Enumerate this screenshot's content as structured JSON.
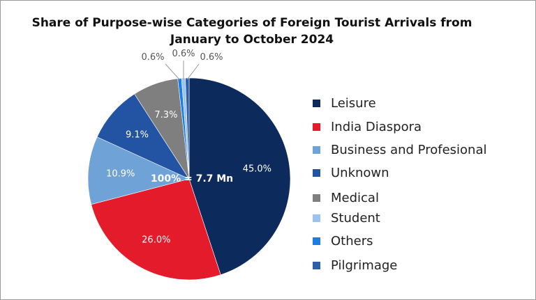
{
  "chart_data": {
    "type": "pie",
    "title": "Share of Purpose-wise Categories of Foreign Tourist Arrivals from January to October 2024",
    "title_lines": [
      "Share of Purpose-wise Categories of Foreign Tourist Arrivals from",
      "January to October 2024"
    ],
    "center_label": "100% = 7.7 Mn",
    "legend_position": "right",
    "slices": [
      {
        "name": "Leisure",
        "value": 45.0,
        "label": "45.0%",
        "color": "#0d2a5c"
      },
      {
        "name": "India Diaspora",
        "value": 26.0,
        "label": "26.0%",
        "color": "#e41b2b"
      },
      {
        "name": "Business  and Profesional",
        "value": 10.9,
        "label": "10.9%",
        "color": "#6fa3d8"
      },
      {
        "name": "Unknown",
        "value": 9.1,
        "label": "9.1%",
        "color": "#2353a3"
      },
      {
        "name": "Medical",
        "value": 7.3,
        "label": "7.3%",
        "color": "#7f7f7f"
      },
      {
        "name": "Others",
        "value": 0.6,
        "label": "0.6%",
        "color": "#1a7ee6"
      },
      {
        "name": "Student",
        "value": 0.6,
        "label": "0.6%",
        "color": "#9cc3ef"
      },
      {
        "name": "Pilgrimage",
        "value": 0.6,
        "label": "0.6%",
        "color": "#2e5ea8"
      }
    ],
    "legend_order": [
      "Leisure",
      "India Diaspora",
      "Business  and Profesional",
      "Unknown",
      "Medical",
      "Student",
      "Others",
      "Pilgrimage"
    ]
  }
}
